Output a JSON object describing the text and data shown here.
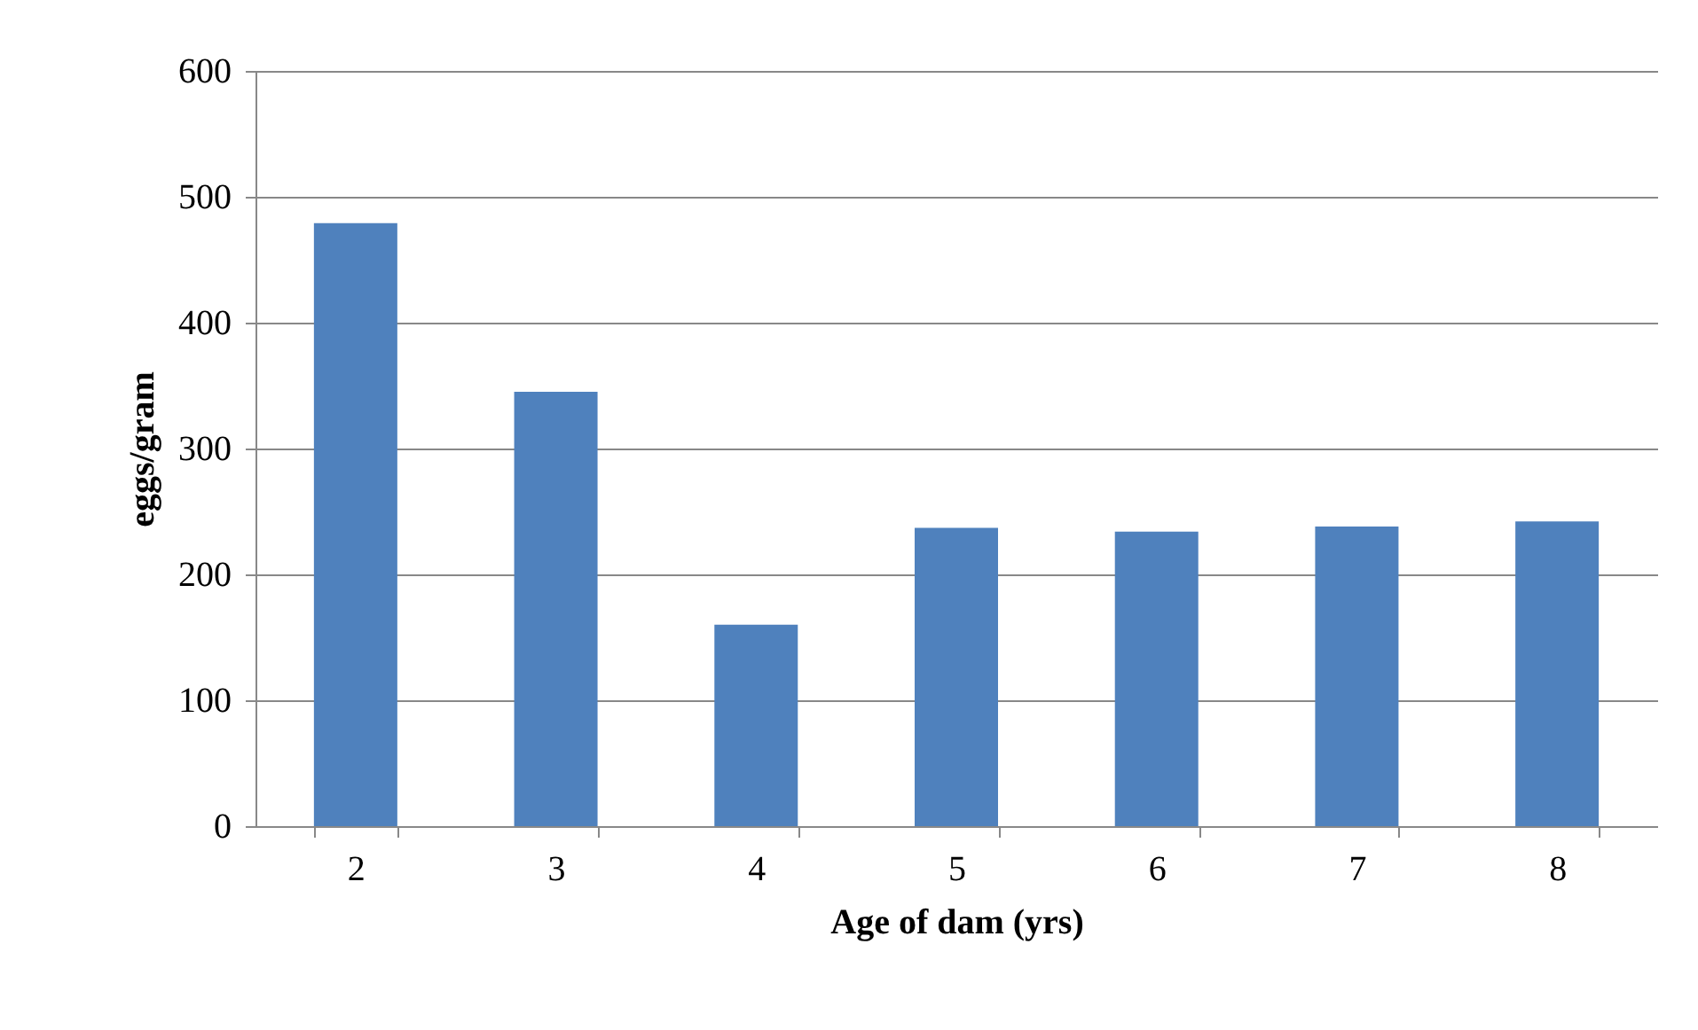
{
  "chart_data": {
    "type": "bar",
    "xlabel": "Age of dam (yrs)",
    "ylabel": "eggs/gram",
    "categories": [
      "2",
      "3",
      "4",
      "5",
      "6",
      "7",
      "8"
    ],
    "values": [
      479,
      345,
      160,
      237,
      234,
      238,
      242
    ],
    "color": "#4f81bd",
    "ylim": [
      0,
      600
    ],
    "yticks": [
      0,
      100,
      200,
      300,
      400,
      500,
      600
    ],
    "grid": "y"
  }
}
